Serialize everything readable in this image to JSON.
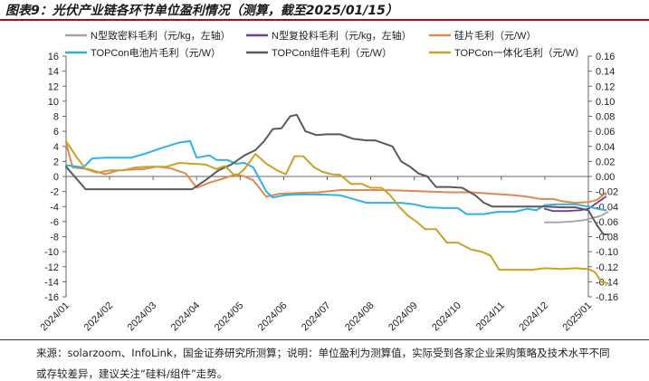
{
  "title": "图表9：光伏产业链各环节单位盈利情况（测算，截至2025/01/15）",
  "footnote": "来源：solarzoom、InfoLink，国金证券研究所测算；说明：单位盈利为测算值，实际受到各家企业采购策略及技术水平不同",
  "footnote_cont": "或存较差异，建议关注“硅料/组件”走势。",
  "chart_data": {
    "type": "line",
    "x": [
      "2024/01",
      "2024/02",
      "2024/03",
      "2024/04",
      "2024/05",
      "2024/06",
      "2024/07",
      "2024/08",
      "2024/09",
      "2024/10",
      "2024/11",
      "2024/12",
      "2025/01"
    ],
    "left_axis": {
      "ylim": [
        -16,
        16
      ],
      "ticks": [
        16,
        14,
        12,
        10,
        8,
        6,
        4,
        2,
        0,
        -2,
        -4,
        -6,
        -8,
        -10,
        -12,
        -14,
        -16
      ]
    },
    "right_axis": {
      "ylim": [
        -0.16,
        0.16
      ],
      "ticks": [
        "0.16",
        "0.14",
        "0.12",
        "0.10",
        "0.08",
        "0.06",
        "0.04",
        "0.02",
        "0.00",
        "-0.02",
        "-0.04",
        "-0.06",
        "-0.08",
        "-0.10",
        "-0.12",
        "-0.14",
        "-0.16"
      ]
    },
    "legend_position": "top",
    "series": [
      {
        "name": "N型致密料毛利（元/kg，左轴）",
        "color": "#a3a3a3",
        "axis": "left",
        "width": 1.8,
        "points": [
          [
            11,
            -6.1
          ],
          [
            11.3,
            -6.1
          ],
          [
            11.6,
            -6.0
          ],
          [
            11.9,
            -5.8
          ],
          [
            12.1,
            -5.5
          ],
          [
            12.3,
            -5.2
          ],
          [
            12.45,
            -4.7
          ]
        ]
      },
      {
        "name": "N型复投料毛利（元/kg，左轴）",
        "color": "#6a3d9a",
        "axis": "left",
        "width": 1.8,
        "points": [
          [
            11,
            -4.3
          ],
          [
            11.2,
            -4.6
          ],
          [
            11.5,
            -4.6
          ],
          [
            11.8,
            -4.5
          ],
          [
            12.0,
            -4.3
          ],
          [
            12.2,
            -3.5
          ],
          [
            12.4,
            -2.7
          ]
        ]
      },
      {
        "name": "硅片毛利（元/W）",
        "color": "#e0894f",
        "axis": "right",
        "points": [
          [
            0,
            0.045
          ],
          [
            0.15,
            0.012
          ],
          [
            0.5,
            0.01
          ],
          [
            0.9,
            0.003
          ],
          [
            1.2,
            0.008
          ],
          [
            1.8,
            0.01
          ],
          [
            2.1,
            0.013
          ],
          [
            2.4,
            0.011
          ],
          [
            2.75,
            0.004
          ],
          [
            3.0,
            -0.015
          ],
          [
            3.3,
            -0.008
          ],
          [
            3.6,
            -0.003
          ],
          [
            3.9,
            0.003
          ],
          [
            4.1,
            0.0
          ],
          [
            4.3,
            -0.005
          ],
          [
            4.6,
            -0.027
          ],
          [
            4.9,
            -0.023
          ],
          [
            5.3,
            -0.022
          ],
          [
            5.8,
            -0.021
          ],
          [
            6.3,
            -0.018
          ],
          [
            6.8,
            -0.018
          ],
          [
            7.3,
            -0.018
          ],
          [
            7.8,
            -0.019
          ],
          [
            8.3,
            -0.02
          ],
          [
            8.8,
            -0.021
          ],
          [
            9.3,
            -0.021
          ],
          [
            9.8,
            -0.023
          ],
          [
            10.3,
            -0.025
          ],
          [
            10.6,
            -0.027
          ],
          [
            10.9,
            -0.03
          ],
          [
            11.2,
            -0.03
          ],
          [
            11.4,
            -0.033
          ],
          [
            11.7,
            -0.035
          ],
          [
            12.0,
            -0.034
          ],
          [
            12.2,
            -0.031
          ],
          [
            12.4,
            -0.022
          ]
        ]
      },
      {
        "name": "TOPCon电池片毛利（元/W）",
        "color": "#2fb0e6",
        "axis": "right",
        "points": [
          [
            0,
            0.015
          ],
          [
            0.4,
            0.012
          ],
          [
            0.6,
            0.024
          ],
          [
            0.9,
            0.025
          ],
          [
            1.2,
            0.025
          ],
          [
            1.5,
            0.025
          ],
          [
            1.8,
            0.03
          ],
          [
            2.2,
            0.038
          ],
          [
            2.6,
            0.045
          ],
          [
            2.85,
            0.047
          ],
          [
            3.0,
            0.025
          ],
          [
            3.3,
            0.028
          ],
          [
            3.45,
            0.022
          ],
          [
            3.7,
            0.022
          ],
          [
            3.9,
            0.017
          ],
          [
            4.1,
            0.018
          ],
          [
            4.3,
            0.012
          ],
          [
            4.6,
            -0.02
          ],
          [
            4.75,
            -0.028
          ],
          [
            5.0,
            -0.025
          ],
          [
            5.3,
            -0.024
          ],
          [
            5.8,
            -0.024
          ],
          [
            6.3,
            -0.025
          ],
          [
            6.6,
            -0.03
          ],
          [
            6.9,
            -0.035
          ],
          [
            7.3,
            -0.035
          ],
          [
            7.7,
            -0.035
          ],
          [
            8.0,
            -0.037
          ],
          [
            8.3,
            -0.041
          ],
          [
            8.7,
            -0.042
          ],
          [
            9.0,
            -0.042
          ],
          [
            9.2,
            -0.05
          ],
          [
            9.6,
            -0.05
          ],
          [
            9.9,
            -0.047
          ],
          [
            10.3,
            -0.047
          ],
          [
            10.6,
            -0.043
          ],
          [
            10.8,
            -0.045
          ],
          [
            11.0,
            -0.038
          ],
          [
            11.3,
            -0.037
          ],
          [
            11.7,
            -0.037
          ],
          [
            12.0,
            -0.04
          ],
          [
            12.2,
            -0.043
          ],
          [
            12.4,
            -0.045
          ]
        ]
      },
      {
        "name": "TOPCon组件毛利（元/W）",
        "color": "#5a5a5a",
        "axis": "right",
        "points": [
          [
            0,
            0.013
          ],
          [
            0.45,
            -0.017
          ],
          [
            0.9,
            -0.017
          ],
          [
            1.4,
            -0.017
          ],
          [
            1.9,
            -0.017
          ],
          [
            2.4,
            -0.017
          ],
          [
            2.9,
            -0.017
          ],
          [
            3.2,
            -0.005
          ],
          [
            3.5,
            0.008
          ],
          [
            3.8,
            0.016
          ],
          [
            4.1,
            0.028
          ],
          [
            4.35,
            0.035
          ],
          [
            4.55,
            0.047
          ],
          [
            4.75,
            0.063
          ],
          [
            4.95,
            0.064
          ],
          [
            5.15,
            0.08
          ],
          [
            5.3,
            0.082
          ],
          [
            5.5,
            0.06
          ],
          [
            5.75,
            0.055
          ],
          [
            6.0,
            0.056
          ],
          [
            6.3,
            0.056
          ],
          [
            6.6,
            0.05
          ],
          [
            6.9,
            0.048
          ],
          [
            7.1,
            0.048
          ],
          [
            7.3,
            0.044
          ],
          [
            7.5,
            0.04
          ],
          [
            7.7,
            0.02
          ],
          [
            7.9,
            0.013
          ],
          [
            8.1,
            0.004
          ],
          [
            8.3,
            0.0
          ],
          [
            8.5,
            -0.014
          ],
          [
            8.8,
            -0.014
          ],
          [
            9.1,
            -0.015
          ],
          [
            9.4,
            -0.025
          ],
          [
            9.6,
            -0.035
          ],
          [
            9.8,
            -0.04
          ],
          [
            10.1,
            -0.04
          ],
          [
            10.5,
            -0.04
          ],
          [
            10.8,
            -0.04
          ],
          [
            11.0,
            -0.04
          ],
          [
            11.4,
            -0.041
          ],
          [
            11.7,
            -0.041
          ],
          [
            12.0,
            -0.045
          ],
          [
            12.2,
            -0.065
          ],
          [
            12.35,
            -0.077
          ],
          [
            12.45,
            -0.077
          ]
        ]
      },
      {
        "name": "TOPCon一体化毛利（元/W）",
        "color": "#c9a227",
        "axis": "right",
        "points": [
          [
            0,
            0.047
          ],
          [
            0.25,
            0.025
          ],
          [
            0.45,
            0.01
          ],
          [
            0.7,
            0.005
          ],
          [
            1.0,
            0.008
          ],
          [
            1.3,
            0.008
          ],
          [
            1.6,
            0.012
          ],
          [
            1.9,
            0.013
          ],
          [
            2.3,
            0.013
          ],
          [
            2.6,
            0.018
          ],
          [
            2.9,
            0.017
          ],
          [
            3.2,
            0.016
          ],
          [
            3.45,
            0.01
          ],
          [
            3.65,
            0.014
          ],
          [
            3.9,
            0.0
          ],
          [
            4.1,
            0.01
          ],
          [
            4.35,
            0.03
          ],
          [
            4.6,
            0.017
          ],
          [
            4.85,
            0.008
          ],
          [
            5.05,
            0.003
          ],
          [
            5.25,
            0.027
          ],
          [
            5.45,
            0.027
          ],
          [
            5.7,
            0.012
          ],
          [
            5.9,
            0.006
          ],
          [
            6.1,
            0.003
          ],
          [
            6.3,
            0.002
          ],
          [
            6.55,
            -0.01
          ],
          [
            6.8,
            -0.01
          ],
          [
            7.0,
            -0.015
          ],
          [
            7.25,
            -0.015
          ],
          [
            7.45,
            -0.025
          ],
          [
            7.65,
            -0.04
          ],
          [
            7.85,
            -0.052
          ],
          [
            8.05,
            -0.06
          ],
          [
            8.25,
            -0.07
          ],
          [
            8.5,
            -0.07
          ],
          [
            8.75,
            -0.088
          ],
          [
            9.0,
            -0.088
          ],
          [
            9.3,
            -0.097
          ],
          [
            9.55,
            -0.1
          ],
          [
            9.75,
            -0.105
          ],
          [
            9.95,
            -0.124
          ],
          [
            10.3,
            -0.124
          ],
          [
            10.7,
            -0.124
          ],
          [
            11.0,
            -0.122
          ],
          [
            11.4,
            -0.123
          ],
          [
            11.7,
            -0.122
          ],
          [
            12.0,
            -0.123
          ],
          [
            12.15,
            -0.127
          ],
          [
            12.3,
            -0.14
          ],
          [
            12.45,
            -0.142
          ]
        ]
      }
    ]
  }
}
